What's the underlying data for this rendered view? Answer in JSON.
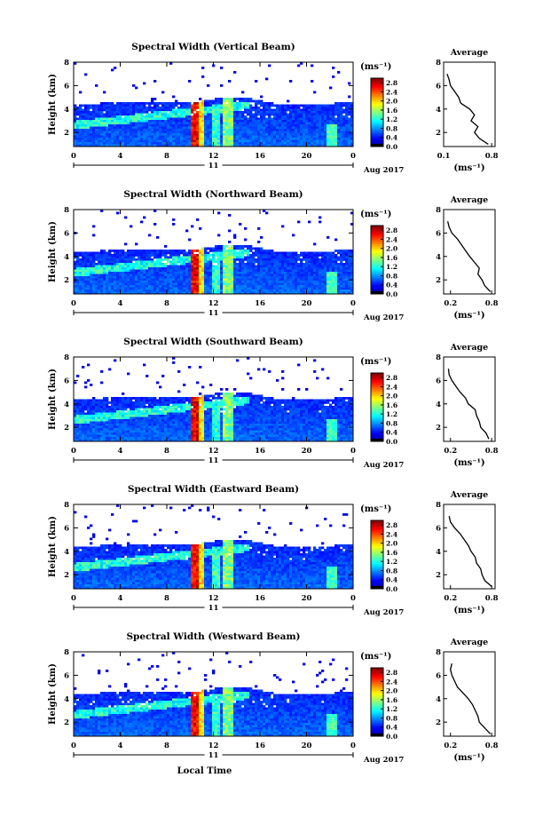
{
  "chart_data": [
    {
      "type": "heatmap",
      "title": "Spectral Width (Vertical Beam)",
      "ylabel": "Height (km)",
      "xticks": [
        "0",
        "4",
        "8",
        "12",
        "16",
        "20",
        "0"
      ],
      "yticks": [
        "2",
        "4",
        "6",
        "8"
      ],
      "date_label": "11",
      "month_label": "Aug 2017",
      "colorbar": {
        "unit": "(ms⁻¹)",
        "ticks": [
          "0.0",
          "0.4",
          "0.8",
          "1.2",
          "1.6",
          "2.0",
          "2.4",
          "2.8"
        ],
        "range": [
          0,
          3.0
        ]
      },
      "profile": {
        "title": "Average",
        "xticks": [
          "0.1",
          "0.8"
        ],
        "xlabel": "(ms⁻¹)",
        "yticks": [
          "2",
          "4",
          "6",
          "8"
        ],
        "heights": [
          1.0,
          1.5,
          2.0,
          2.5,
          3.0,
          3.5,
          4.0,
          4.5,
          5.0,
          5.5,
          6.0,
          6.5,
          7.0
        ],
        "values": [
          0.75,
          0.62,
          0.55,
          0.6,
          0.5,
          0.55,
          0.48,
          0.35,
          0.32,
          0.26,
          0.2,
          0.18,
          0.15
        ]
      }
    },
    {
      "type": "heatmap",
      "title": "Spectral Width (Northward Beam)",
      "ylabel": "Height (km)",
      "xticks": [
        "0",
        "4",
        "8",
        "12",
        "16",
        "20",
        "0"
      ],
      "yticks": [
        "2",
        "4",
        "6",
        "8"
      ],
      "date_label": "11",
      "month_label": "Aug 2017",
      "colorbar": {
        "unit": "(ms⁻¹)",
        "ticks": [
          "0.0",
          "0.4",
          "0.8",
          "1.2",
          "1.6",
          "2.0",
          "2.4",
          "2.8"
        ],
        "range": [
          0,
          3.0
        ]
      },
      "profile": {
        "title": "Average",
        "xticks": [
          "0.2",
          "0.8"
        ],
        "xlabel": "(ms⁻¹)",
        "yticks": [
          "2",
          "4",
          "6",
          "8"
        ],
        "heights": [
          1.0,
          1.5,
          2.0,
          2.5,
          3.0,
          3.5,
          4.0,
          4.5,
          5.0,
          5.5,
          6.0,
          6.5,
          7.0
        ],
        "values": [
          0.78,
          0.7,
          0.66,
          0.6,
          0.62,
          0.55,
          0.48,
          0.42,
          0.36,
          0.3,
          0.22,
          0.18,
          0.16
        ]
      }
    },
    {
      "type": "heatmap",
      "title": "Spectral Width (Southward Beam)",
      "ylabel": "Height (km)",
      "xticks": [
        "0",
        "4",
        "8",
        "12",
        "16",
        "20",
        "0"
      ],
      "yticks": [
        "2",
        "4",
        "6",
        "8"
      ],
      "date_label": "11",
      "month_label": "Aug 2017",
      "colorbar": {
        "unit": "(ms⁻¹)",
        "ticks": [
          "0.0",
          "0.4",
          "0.8",
          "1.2",
          "1.6",
          "2.0",
          "2.4",
          "2.8"
        ],
        "range": [
          0,
          3.0
        ]
      },
      "profile": {
        "title": "Average",
        "xticks": [
          "0.2",
          "0.8"
        ],
        "xlabel": "(ms⁻¹)",
        "yticks": [
          "2",
          "4",
          "6",
          "8"
        ],
        "heights": [
          1.0,
          1.5,
          2.0,
          2.5,
          3.0,
          3.5,
          4.0,
          4.5,
          5.0,
          5.5,
          6.0,
          6.5,
          7.0
        ],
        "values": [
          0.76,
          0.72,
          0.64,
          0.62,
          0.58,
          0.56,
          0.46,
          0.42,
          0.34,
          0.28,
          0.22,
          0.18,
          0.17
        ]
      }
    },
    {
      "type": "heatmap",
      "title": "Spectral Width (Eastward Beam)",
      "ylabel": "Height (km)",
      "xticks": [
        "0",
        "4",
        "8",
        "12",
        "16",
        "20",
        "0"
      ],
      "yticks": [
        "2",
        "4",
        "6",
        "8"
      ],
      "date_label": "11",
      "month_label": "Aug 2017",
      "colorbar": {
        "unit": "(ms⁻¹)",
        "ticks": [
          "0.0",
          "0.4",
          "0.8",
          "1.2",
          "1.6",
          "2.0",
          "2.4",
          "2.8"
        ],
        "range": [
          0,
          3.0
        ]
      },
      "profile": {
        "title": "Average",
        "xticks": [
          "0.2",
          "0.8"
        ],
        "xlabel": "(ms⁻¹)",
        "yticks": [
          "2",
          "4",
          "6",
          "8"
        ],
        "heights": [
          1.0,
          1.5,
          2.0,
          2.5,
          3.0,
          3.5,
          4.0,
          4.5,
          5.0,
          5.5,
          6.0,
          6.5,
          7.0
        ],
        "values": [
          0.8,
          0.7,
          0.66,
          0.64,
          0.58,
          0.56,
          0.5,
          0.46,
          0.4,
          0.34,
          0.26,
          0.2,
          0.18
        ]
      }
    },
    {
      "type": "heatmap",
      "title": "Spectral Width (Westward Beam)",
      "ylabel": "Height (km)",
      "xticks": [
        "0",
        "4",
        "8",
        "12",
        "16",
        "20",
        "0"
      ],
      "yticks": [
        "2",
        "4",
        "6",
        "8"
      ],
      "date_label": "11",
      "month_label": "Aug 2017",
      "xlabel": "Local Time",
      "colorbar": {
        "unit": "(ms⁻¹)",
        "ticks": [
          "0.0",
          "0.4",
          "0.8",
          "1.2",
          "1.6",
          "2.0",
          "2.4",
          "2.8"
        ],
        "range": [
          0,
          3.0
        ]
      },
      "profile": {
        "title": "Average",
        "xticks": [
          "0.2",
          "0.8"
        ],
        "xlabel": "(ms⁻¹)",
        "yticks": [
          "2",
          "4",
          "6",
          "8"
        ],
        "heights": [
          1.0,
          1.5,
          2.0,
          2.5,
          3.0,
          3.5,
          4.0,
          4.5,
          5.0,
          5.5,
          6.0,
          6.5,
          7.0
        ],
        "values": [
          0.78,
          0.7,
          0.62,
          0.6,
          0.56,
          0.52,
          0.46,
          0.38,
          0.3,
          0.26,
          0.22,
          0.2,
          0.22
        ]
      }
    }
  ],
  "colors": {
    "jet": [
      "#00008f",
      "#0000ff",
      "#0080ff",
      "#00ffff",
      "#80ff80",
      "#ffff00",
      "#ff8000",
      "#ff0000",
      "#800000"
    ],
    "empty": "#ffffff",
    "lowest": "#3a4bd8"
  }
}
